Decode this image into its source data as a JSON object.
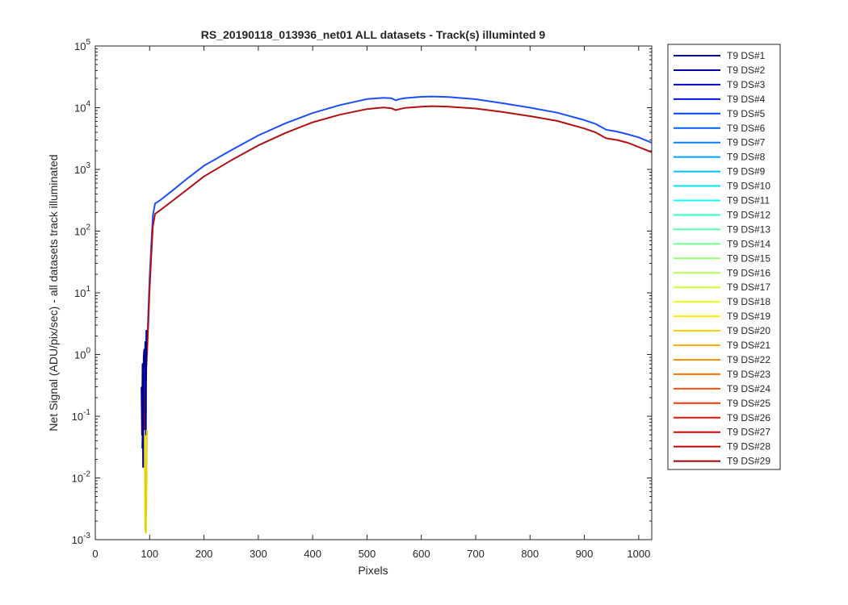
{
  "chart_data": {
    "type": "line",
    "title": "RS_20190118_013936_net01 ALL datasets - Track(s) illuminted 9",
    "xlabel": "Pixels",
    "ylabel": "Net Signal (ADU/pix/sec) - all datasets track illuminated",
    "xlim": [
      0,
      1024
    ],
    "ylim": [
      0.001,
      100000
    ],
    "yscale": "log",
    "grid": false,
    "legend_position": "outside-right",
    "xticks": [
      0,
      100,
      200,
      300,
      400,
      500,
      600,
      700,
      800,
      900,
      1000
    ],
    "yticks": [
      {
        "value": 0.001,
        "base": "10",
        "exp": "-3"
      },
      {
        "value": 0.01,
        "base": "10",
        "exp": "-2"
      },
      {
        "value": 0.1,
        "base": "10",
        "exp": "-1"
      },
      {
        "value": 1,
        "base": "10",
        "exp": "0"
      },
      {
        "value": 10,
        "base": "10",
        "exp": "1"
      },
      {
        "value": 100,
        "base": "10",
        "exp": "2"
      },
      {
        "value": 1000,
        "base": "10",
        "exp": "3"
      },
      {
        "value": 10000,
        "base": "10",
        "exp": "4"
      },
      {
        "value": 100000,
        "base": "10",
        "exp": "5"
      }
    ],
    "legend": [
      {
        "name": "T9 DS#1",
        "color": "#00008f"
      },
      {
        "name": "T9 DS#2",
        "color": "#0000a8"
      },
      {
        "name": "T9 DS#3",
        "color": "#0000cc"
      },
      {
        "name": "T9 DS#4",
        "color": "#0010ee"
      },
      {
        "name": "T9 DS#5",
        "color": "#0040ff"
      },
      {
        "name": "T9 DS#6",
        "color": "#0060ff"
      },
      {
        "name": "T9 DS#7",
        "color": "#0080ff"
      },
      {
        "name": "T9 DS#8",
        "color": "#00a0ff"
      },
      {
        "name": "T9 DS#9",
        "color": "#00c0ff"
      },
      {
        "name": "T9 DS#10",
        "color": "#00e0ff"
      },
      {
        "name": "T9 DS#11",
        "color": "#10ffef"
      },
      {
        "name": "T9 DS#12",
        "color": "#30ffcf"
      },
      {
        "name": "T9 DS#13",
        "color": "#50ffaf"
      },
      {
        "name": "T9 DS#14",
        "color": "#70ff8f"
      },
      {
        "name": "T9 DS#15",
        "color": "#8fff70"
      },
      {
        "name": "T9 DS#16",
        "color": "#afff50"
      },
      {
        "name": "T9 DS#17",
        "color": "#cfff30"
      },
      {
        "name": "T9 DS#18",
        "color": "#efff10"
      },
      {
        "name": "T9 DS#19",
        "color": "#ffec00"
      },
      {
        "name": "T9 DS#20",
        "color": "#ffd000"
      },
      {
        "name": "T9 DS#21",
        "color": "#ffb000"
      },
      {
        "name": "T9 DS#22",
        "color": "#ff9000"
      },
      {
        "name": "T9 DS#23",
        "color": "#ff7000"
      },
      {
        "name": "T9 DS#24",
        "color": "#ff5000"
      },
      {
        "name": "T9 DS#25",
        "color": "#ff3000"
      },
      {
        "name": "T9 DS#26",
        "color": "#ef1000"
      },
      {
        "name": "T9 DS#27",
        "color": "#d80000"
      },
      {
        "name": "T9 DS#28",
        "color": "#c00000"
      },
      {
        "name": "T9 DS#29",
        "color": "#a00000"
      }
    ],
    "series": [
      {
        "name": "T9 DS#5",
        "color": "#1a4fff",
        "x": [
          86,
          88,
          90,
          92,
          94,
          96,
          98,
          100,
          103,
          106,
          110,
          120,
          140,
          170,
          200,
          250,
          300,
          350,
          400,
          450,
          500,
          530,
          545,
          553,
          560,
          570,
          600,
          620,
          650,
          700,
          750,
          800,
          850,
          900,
          920,
          940,
          960,
          980,
          1000,
          1024
        ],
        "y": [
          0.03,
          0.1,
          0.3,
          0.6,
          1.0,
          2.0,
          6.0,
          18.0,
          60.0,
          180.0,
          280.0,
          320.0,
          440.0,
          720.0,
          1150.0,
          2050.0,
          3550.0,
          5600.0,
          8200.0,
          11000.0,
          13800.0,
          14500.0,
          14200.0,
          13200.0,
          13800.0,
          14300.0,
          15000.0,
          15200.0,
          14900.0,
          13700.0,
          11800.0,
          10000.0,
          8300.0,
          6300.0,
          5500.0,
          4400.0,
          4100.0,
          3700.0,
          3300.0,
          2700.0
        ]
      },
      {
        "name": "T9 DS#29",
        "color": "#b31010",
        "x": [
          90,
          92,
          94,
          96,
          98,
          100,
          103,
          106,
          110,
          120,
          140,
          170,
          200,
          250,
          300,
          350,
          400,
          450,
          500,
          530,
          545,
          553,
          560,
          570,
          600,
          620,
          650,
          700,
          750,
          800,
          850,
          900,
          920,
          940,
          960,
          980,
          1000,
          1024
        ],
        "y": [
          0.06,
          0.25,
          0.6,
          1.5,
          4.0,
          12.0,
          40.0,
          120.0,
          190.0,
          220.0,
          300.0,
          480.0,
          770.0,
          1400.0,
          2450.0,
          3900.0,
          5800.0,
          7700.0,
          9500.0,
          10100.0,
          9800.0,
          9100.0,
          9500.0,
          9900.0,
          10400.0,
          10600.0,
          10400.0,
          9700.0,
          8500.0,
          7300.0,
          6100.0,
          4600.0,
          4000.0,
          3200.0,
          3000.0,
          2700.0,
          2300.0,
          1900.0
        ]
      },
      {
        "name": "T9 DS#1",
        "color": "#00008f",
        "x": [
          85,
          86,
          87,
          88,
          89,
          90,
          91,
          92,
          93,
          94
        ],
        "y": [
          0.3,
          0.05,
          0.7,
          0.015,
          0.9,
          1.2,
          0.6,
          1.6,
          0.05,
          2.5
        ]
      },
      {
        "name": "T9 DS#19",
        "color": "#e8d000",
        "x": [
          91,
          92,
          93,
          94,
          95
        ],
        "y": [
          0.05,
          0.0015,
          0.0013,
          0.004,
          0.06
        ]
      }
    ]
  }
}
